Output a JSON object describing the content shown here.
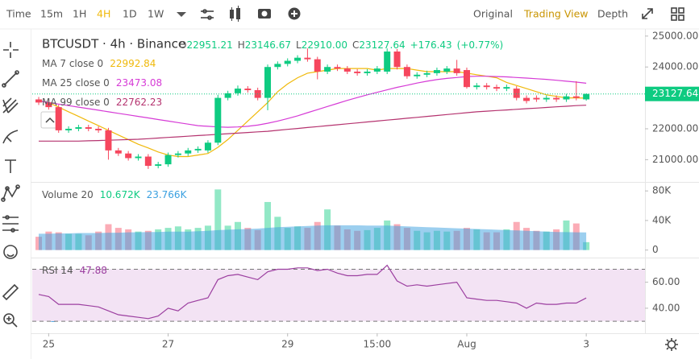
{
  "toolbar": {
    "active_color": "#f0b90b",
    "intervals": [
      {
        "label": "Time"
      },
      {
        "label": "15m"
      },
      {
        "label": "1H"
      },
      {
        "label": "4H",
        "active": true
      },
      {
        "label": "1D"
      },
      {
        "label": "1W"
      }
    ],
    "views": [
      {
        "label": "Original"
      },
      {
        "label": "Trading View",
        "active": true
      },
      {
        "label": "Depth"
      }
    ]
  },
  "chart_data": {
    "type": "candlestick",
    "title": "BTCUSDT · 4h · Binance",
    "header": [
      {
        "key": "O",
        "value": "22951.21"
      },
      {
        "key": "H",
        "value": "23146.67"
      },
      {
        "key": "L",
        "value": "22910.00"
      },
      {
        "key": "C",
        "value": "23127.64"
      }
    ],
    "change": "+176.43",
    "change_pct": "(+0.77%)",
    "up_color": "#0ecb81",
    "down_color": "#f6465d",
    "candles": {
      "open": [
        22950,
        22850,
        22700,
        21950,
        22000,
        22050,
        22000,
        21950,
        21300,
        21200,
        21050,
        21100,
        20800,
        20850,
        21150,
        21200,
        21300,
        21300,
        21550,
        23000,
        23150,
        23300,
        23250,
        23000,
        24000,
        24100,
        24200,
        24300,
        24250,
        23850,
        24000,
        23950,
        23850,
        23800,
        23850,
        23850,
        24500,
        24000,
        23700,
        23750,
        23800,
        23850,
        23950,
        23900,
        23350,
        23400,
        23350,
        23300,
        23300,
        23000,
        23000,
        22950,
        23000,
        22950,
        23050,
        22951.21
      ],
      "high": [
        23030,
        22930,
        22780,
        22080,
        22130,
        22130,
        22080,
        22030,
        21380,
        21280,
        21180,
        21180,
        20930,
        21230,
        21280,
        21380,
        21430,
        21630,
        23100,
        23230,
        23400,
        23380,
        23330,
        24080,
        24180,
        24280,
        24380,
        24600,
        24330,
        24080,
        24080,
        24030,
        23930,
        23930,
        24030,
        24600,
        24580,
        24080,
        23830,
        23880,
        23980,
        24030,
        24230,
        23980,
        23480,
        23480,
        23430,
        23430,
        23380,
        23080,
        23080,
        23080,
        23080,
        23130,
        23540,
        23146.67
      ],
      "low": [
        22770,
        22620,
        21870,
        21870,
        21920,
        21920,
        21870,
        21000,
        21120,
        20970,
        20970,
        20700,
        20720,
        20770,
        21070,
        21120,
        21220,
        21220,
        21470,
        22920,
        23070,
        23170,
        22920,
        22600,
        23920,
        24020,
        24120,
        24170,
        23600,
        23770,
        23870,
        23770,
        23720,
        23720,
        23770,
        23770,
        23920,
        23620,
        23620,
        23670,
        23720,
        23770,
        23720,
        23300,
        23270,
        23270,
        23220,
        23220,
        22920,
        22820,
        22870,
        22870,
        22870,
        22870,
        22920,
        22910
      ],
      "close": [
        22850,
        22700,
        21950,
        22000,
        22050,
        22000,
        21950,
        21300,
        21200,
        21050,
        21100,
        20800,
        20850,
        21150,
        21200,
        21300,
        21350,
        21550,
        23000,
        23150,
        23300,
        23250,
        23000,
        24000,
        24100,
        24200,
        24300,
        24250,
        23850,
        24000,
        23950,
        23850,
        23800,
        23850,
        23950,
        24500,
        24000,
        23700,
        23750,
        23800,
        23900,
        23950,
        23800,
        23350,
        23400,
        23350,
        23300,
        23350,
        23000,
        22900,
        22950,
        23000,
        22950,
        23050,
        23000,
        23127.64
      ]
    },
    "overlays": [
      {
        "name": "MA 7 close 0",
        "color": "#f0b90b",
        "values": [
          22900,
          22850,
          22700,
          22550,
          22400,
          22250,
          22100,
          21950,
          21800,
          21650,
          21500,
          21380,
          21250,
          21150,
          21100,
          21100,
          21150,
          21200,
          21400,
          21650,
          21950,
          22250,
          22550,
          22850,
          23200,
          23450,
          23650,
          23800,
          23850,
          23900,
          23950,
          23950,
          23950,
          23950,
          23900,
          23950,
          23950,
          23950,
          23900,
          23850,
          23850,
          23850,
          23850,
          23800,
          23750,
          23700,
          23650,
          23500,
          23400,
          23300,
          23200,
          23100,
          23050,
          23000,
          23000,
          22992.84
        ]
      },
      {
        "name": "MA 25 close 0",
        "color": "#d63bd6",
        "values": [
          22900,
          22850,
          22800,
          22750,
          22700,
          22650,
          22600,
          22550,
          22500,
          22450,
          22400,
          22350,
          22300,
          22250,
          22200,
          22150,
          22100,
          22080,
          22060,
          22050,
          22060,
          22080,
          22120,
          22180,
          22250,
          22330,
          22420,
          22520,
          22620,
          22720,
          22820,
          22920,
          23010,
          23100,
          23180,
          23260,
          23340,
          23410,
          23480,
          23540,
          23590,
          23630,
          23660,
          23690,
          23700,
          23700,
          23690,
          23680,
          23660,
          23640,
          23620,
          23600,
          23570,
          23540,
          23510,
          23473.08
        ]
      },
      {
        "name": "MA 99 close 0",
        "color": "#b5336f",
        "values": [
          21600,
          21600,
          21600,
          21600,
          21600,
          21610,
          21620,
          21630,
          21640,
          21650,
          21660,
          21680,
          21700,
          21720,
          21740,
          21760,
          21780,
          21800,
          21820,
          21840,
          21860,
          21880,
          21900,
          21920,
          21950,
          21980,
          22010,
          22040,
          22070,
          22100,
          22130,
          22160,
          22190,
          22220,
          22250,
          22280,
          22310,
          22340,
          22370,
          22400,
          22430,
          22460,
          22490,
          22520,
          22550,
          22570,
          22590,
          22610,
          22630,
          22650,
          22670,
          22690,
          22710,
          22730,
          22750,
          22762.23
        ]
      }
    ],
    "ylim": [
      20280,
      25230
    ],
    "yticks": [
      {
        "value": 21000,
        "label": "21000.00"
      },
      {
        "value": 22000,
        "label": "22000.00"
      },
      {
        "value": 23000,
        "label": "23000.00"
      },
      {
        "value": 24000,
        "label": "24000.00"
      },
      {
        "value": 25000,
        "label": "25000.00"
      }
    ],
    "xlim": [
      -0.65,
      60.9
    ],
    "xticks": [
      {
        "value": 1,
        "label": "25"
      },
      {
        "value": 13,
        "label": "27"
      },
      {
        "value": 25,
        "label": "29"
      },
      {
        "value": 34,
        "label": "15:00"
      },
      {
        "value": 43,
        "label": "Aug"
      },
      {
        "value": 55,
        "label": "3"
      }
    ],
    "volume": {
      "name": "Volume 20",
      "values": [
        18000,
        25000,
        24000,
        22000,
        22000,
        20000,
        25000,
        35000,
        30000,
        28000,
        25000,
        26000,
        28000,
        30000,
        32000,
        28000,
        30000,
        33000,
        82000,
        33000,
        38000,
        30000,
        27000,
        65000,
        45000,
        30000,
        32000,
        30000,
        38000,
        55000,
        33000,
        28000,
        26000,
        27000,
        30000,
        40000,
        35000,
        30000,
        26000,
        24000,
        26000,
        25000,
        26000,
        30000,
        28000,
        24000,
        24000,
        28000,
        38000,
        30000,
        26000,
        25000,
        28000,
        40000,
        36000,
        10672
      ],
      "value_labels": {
        "55": "10.672K"
      },
      "ma": {
        "color": "#3aa0e0",
        "values": [
          22000,
          22000,
          22500,
          22500,
          23000,
          23000,
          23000,
          23500,
          23500,
          24000,
          24000,
          24500,
          24500,
          25000,
          25000,
          25000,
          25500,
          26000,
          27000,
          27500,
          28000,
          28500,
          29000,
          30000,
          31000,
          31500,
          32000,
          32500,
          33000,
          33500,
          33500,
          33500,
          33500,
          33000,
          33000,
          33000,
          32500,
          32000,
          31500,
          31000,
          30500,
          30000,
          29500,
          29000,
          28500,
          28000,
          27500,
          27000,
          26500,
          26000,
          25500,
          25000,
          24500,
          24200,
          24000,
          23766
        ],
        "value_labels": {
          "55": "23.766K"
        }
      },
      "ylim": [
        -8000,
        90000
      ],
      "yticks": [
        0,
        {
          "value": 40000,
          "label": "40K"
        },
        {
          "value": 80000,
          "label": "80K"
        }
      ]
    },
    "rsi": {
      "name": "RSI 14",
      "color": "#9c3fa0",
      "values": [
        50.6,
        49,
        43,
        43,
        43,
        42,
        41,
        38,
        35,
        34,
        33,
        32,
        34,
        40,
        38,
        44,
        46,
        48,
        62,
        65,
        66,
        64,
        62,
        68,
        70,
        70,
        71,
        71,
        69,
        70,
        67,
        65,
        65,
        66,
        66,
        73,
        61,
        57,
        58,
        57,
        58,
        59,
        60,
        48,
        47,
        46,
        46,
        45,
        44,
        40,
        44,
        43,
        43,
        44,
        44,
        47.88
      ],
      "bands": [
        30,
        70
      ],
      "ylim": [
        22,
        74
      ],
      "yticks": [
        {
          "value": 40,
          "label": "40.00"
        },
        {
          "value": 60,
          "label": "60.00"
        }
      ]
    }
  }
}
